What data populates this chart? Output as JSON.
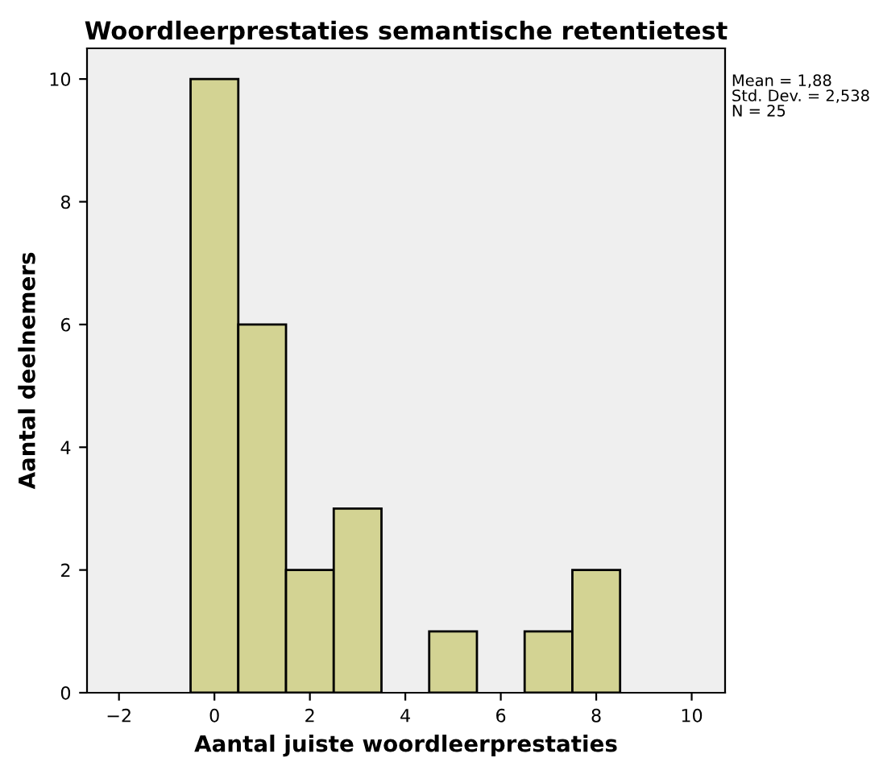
{
  "chart_data": {
    "type": "histogram",
    "title": "Woordleerprestaties semantische retentietest",
    "xlabel": "Aantal juiste woordleerprestaties",
    "ylabel": "Aantal deelnemers",
    "bins": [
      -0.5,
      0.5,
      1.5,
      2.5,
      3.5,
      4.5,
      5.5,
      6.5,
      7.5,
      8.5
    ],
    "values": [
      10,
      6,
      2,
      3,
      0,
      1,
      0,
      1,
      2
    ],
    "color": "#d3d393",
    "xlim": [
      -2.67,
      10.7
    ],
    "ylim": [
      0,
      10.5
    ],
    "xticks": [
      {
        "value": -2,
        "label": "−2"
      },
      0,
      2,
      4,
      6,
      8,
      10
    ],
    "yticks": [
      0,
      2,
      4,
      6,
      8,
      10
    ],
    "annotations": [
      "Mean = 1,88\nStd. Dev. = 2,538\nN = 25"
    ],
    "grid": false
  }
}
